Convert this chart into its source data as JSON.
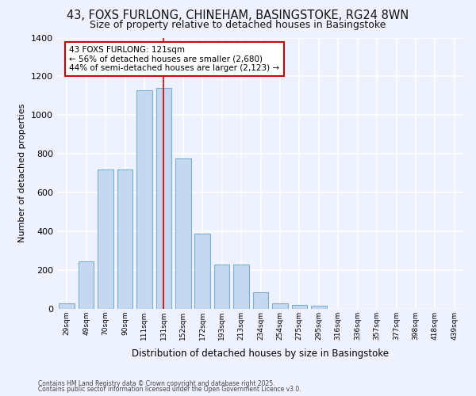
{
  "title_line1": "43, FOXS FURLONG, CHINEHAM, BASINGSTOKE, RG24 8WN",
  "title_line2": "Size of property relative to detached houses in Basingstoke",
  "xlabel": "Distribution of detached houses by size in Basingstoke",
  "ylabel": "Number of detached properties",
  "categories": [
    "29sqm",
    "49sqm",
    "70sqm",
    "90sqm",
    "111sqm",
    "131sqm",
    "152sqm",
    "172sqm",
    "193sqm",
    "213sqm",
    "234sqm",
    "254sqm",
    "275sqm",
    "295sqm",
    "316sqm",
    "336sqm",
    "357sqm",
    "377sqm",
    "398sqm",
    "418sqm",
    "439sqm"
  ],
  "values": [
    30,
    245,
    720,
    720,
    1130,
    1140,
    775,
    390,
    230,
    230,
    85,
    30,
    20,
    15,
    0,
    0,
    0,
    0,
    0,
    0,
    0
  ],
  "bar_color": "#c5d8ef",
  "bar_edge_color": "#7aafd4",
  "annotation_line1": "43 FOXS FURLONG: 121sqm",
  "annotation_line2": "← 56% of detached houses are smaller (2,680)",
  "annotation_line3": "44% of semi-detached houses are larger (2,123) →",
  "annotation_box_color": "#ffffff",
  "annotation_box_edge": "#cc0000",
  "property_bin_index": 5,
  "marker_line_color": "#cc0000",
  "ylim": [
    0,
    1400
  ],
  "yticks": [
    0,
    200,
    400,
    600,
    800,
    1000,
    1200,
    1400
  ],
  "background_color": "#eef2ff",
  "grid_color": "#ffffff",
  "footer_line1": "Contains HM Land Registry data © Crown copyright and database right 2025.",
  "footer_line2": "Contains public sector information licensed under the Open Government Licence v3.0."
}
